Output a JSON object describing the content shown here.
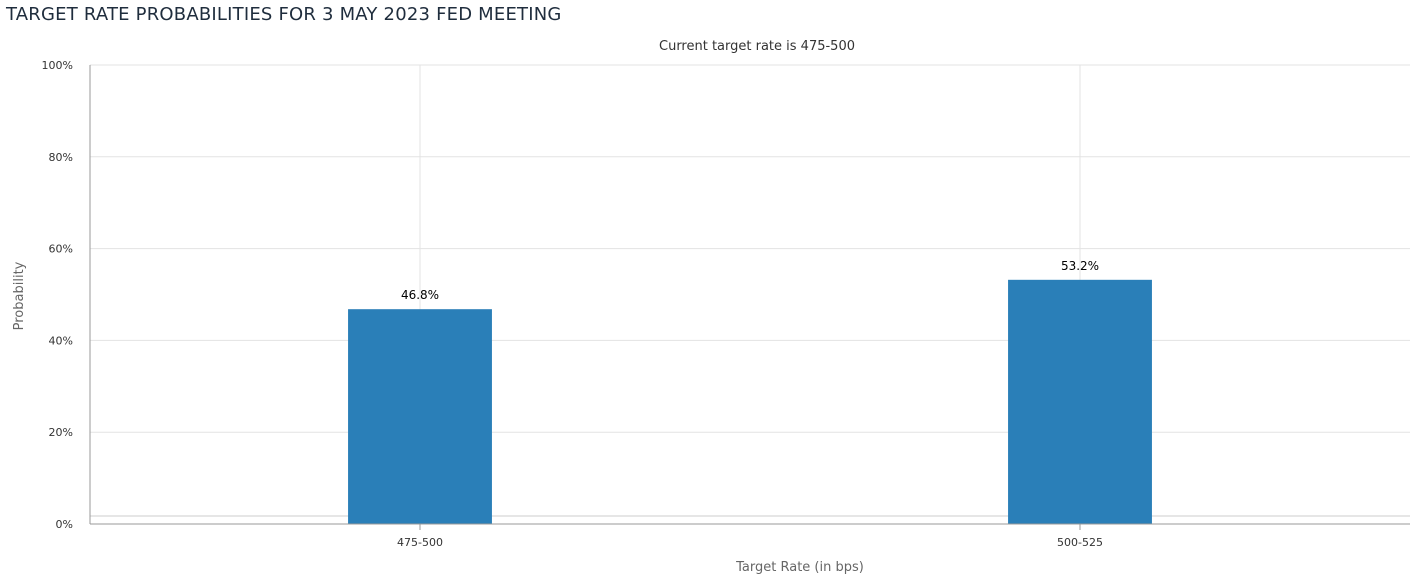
{
  "header": {
    "title": "TARGET RATE PROBABILITIES FOR 3 MAY 2023 FED MEETING"
  },
  "chart_data": {
    "type": "bar",
    "subtitle": "Current target rate is 475-500",
    "xlabel": "Target Rate (in bps)",
    "ylabel": "Probability",
    "categories": [
      "475-500",
      "500-525"
    ],
    "values": [
      46.8,
      53.2
    ],
    "data_labels": [
      "46.8%",
      "53.2%"
    ],
    "ylim": [
      0,
      100
    ],
    "yticks": [
      0,
      20,
      40,
      60,
      80,
      100
    ],
    "ytick_labels": [
      "0%",
      "20%",
      "40%",
      "60%",
      "80%",
      "100%"
    ],
    "grid": true,
    "legend": false,
    "bar_color": "#2a7fb8"
  }
}
